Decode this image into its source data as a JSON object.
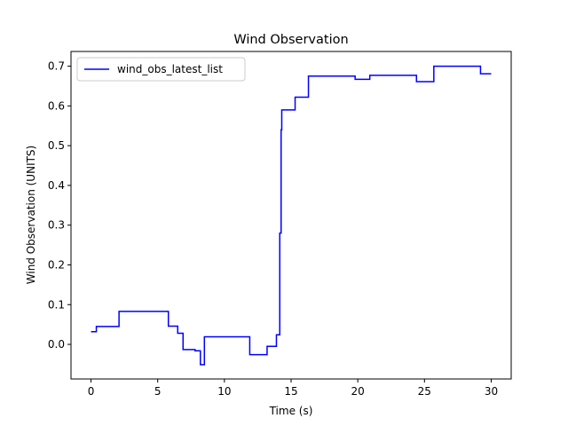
{
  "chart_data": {
    "type": "line",
    "title": "Wind Observation",
    "xlabel": "Time (s)",
    "ylabel": "Wind Observation (UNITS)",
    "xlim": [
      -1.5,
      31.5
    ],
    "ylim": [
      -0.087,
      0.737
    ],
    "xticks": [
      0,
      5,
      10,
      15,
      20,
      25,
      30
    ],
    "yticks": [
      0.0,
      0.1,
      0.2,
      0.3,
      0.4,
      0.5,
      0.6,
      0.7
    ],
    "ytick_labels": [
      "0.0",
      "0.1",
      "0.2",
      "0.3",
      "0.4",
      "0.5",
      "0.6",
      "0.7"
    ],
    "grid": false,
    "legend_position": "top-left",
    "series": [
      {
        "name": "wind_obs_latest_list",
        "color": "#0000ff",
        "step": true,
        "x": [
          0,
          0.4,
          2.1,
          5.8,
          6.5,
          6.9,
          7.8,
          8.2,
          8.5,
          11.9,
          13.2,
          13.9,
          14.15,
          14.25,
          14.3,
          14.4,
          15.3,
          16.3,
          19.8,
          20.9,
          24.4,
          25.7,
          29.2,
          30.0
        ],
        "y": [
          0.032,
          0.045,
          0.083,
          0.046,
          0.028,
          -0.013,
          -0.016,
          -0.051,
          0.019,
          -0.026,
          -0.005,
          0.024,
          0.28,
          0.54,
          0.59,
          0.59,
          0.622,
          0.675,
          0.667,
          0.677,
          0.661,
          0.7,
          0.681,
          0.681
        ]
      }
    ]
  }
}
